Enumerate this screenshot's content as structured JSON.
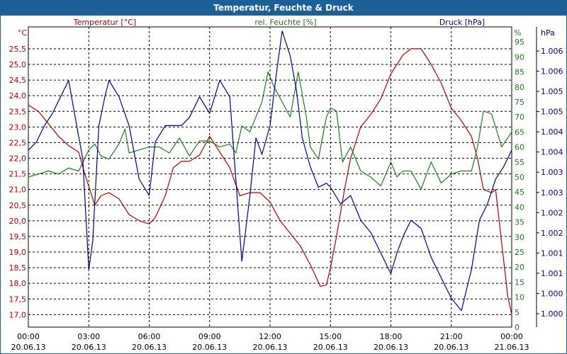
{
  "window": {
    "title": "Temperatur, Feuchte & Druck"
  },
  "colors": {
    "temperature": "#b00000",
    "humidity": "#1f7a1f",
    "pressure": "#00008b",
    "axis_text": "#000000",
    "grid": "#000000",
    "title_bar": "#1d5f97"
  },
  "chart_data": {
    "type": "line",
    "title": "Temperatur, Feuchte & Druck",
    "x_ticks": [
      {
        "time": "00:00",
        "date": "20.06.13"
      },
      {
        "time": "03:00",
        "date": "20.06.13"
      },
      {
        "time": "06:00",
        "date": "20.06.13"
      },
      {
        "time": "09:00",
        "date": "20.06.13"
      },
      {
        "time": "12:00",
        "date": "20.06.13"
      },
      {
        "time": "15:00",
        "date": "20.06.13"
      },
      {
        "time": "18:00",
        "date": "20.06.13"
      },
      {
        "time": "21:00",
        "date": "20.06.13"
      },
      {
        "time": "00:00",
        "date": "21.06.13"
      }
    ],
    "xlim_hours": [
      0,
      24
    ],
    "axes": {
      "left": {
        "unit": "°C",
        "label": "Temperatur [°C]",
        "ylim": [
          16.6,
          26.2
        ],
        "ticks": [
          "17,0",
          "17,5",
          "18,0",
          "18,5",
          "19,0",
          "19,5",
          "20,0",
          "20,5",
          "21,0",
          "21,5",
          "22,0",
          "22,5",
          "23,0",
          "23,5",
          "24,0",
          "24,5",
          "25,0",
          "25,5"
        ]
      },
      "right1": {
        "unit": "%",
        "label": "rel. Feuchte [%]",
        "ylim": [
          0,
          100
        ],
        "ticks": [
          "0",
          "5",
          "10",
          "15",
          "20",
          "25",
          "30",
          "35",
          "40",
          "45",
          "50",
          "55",
          "60",
          "65",
          "70",
          "75",
          "80",
          "85",
          "90",
          "95"
        ]
      },
      "right2": {
        "unit": "hPa",
        "label": "Druck [hPa]",
        "ylim": [
          0.9994,
          1.0067
        ],
        "ticks": [
          "1.000",
          "1.000",
          "1.001",
          "1.001",
          "1.002",
          "1.002",
          "1.003",
          "1.003",
          "1.004",
          "1.004",
          "1.005",
          "1.005",
          "1.006",
          "1.006"
        ]
      }
    },
    "series": [
      {
        "name": "Temperatur [°C]",
        "axis": "left",
        "color": "#b00000",
        "x": [
          0,
          0.5,
          1,
          1.5,
          2,
          2.5,
          2.8,
          3,
          3.3,
          3.6,
          4,
          4.5,
          5,
          5.5,
          6,
          6.3,
          6.8,
          7.2,
          7.6,
          8,
          8.5,
          9,
          9.5,
          10,
          10.5,
          11,
          11.5,
          12,
          12.5,
          13,
          13.5,
          14,
          14.5,
          14.8,
          15,
          15.3,
          15.7,
          16,
          16.5,
          17,
          17.5,
          18,
          18.3,
          18.6,
          19,
          19.5,
          20,
          20.5,
          21,
          21.5,
          22,
          22.3,
          22.6,
          23,
          23.2,
          23.5,
          23.8,
          24
        ],
        "values": [
          23.7,
          23.5,
          23.1,
          22.7,
          22.4,
          22.2,
          21.5,
          21.1,
          20.5,
          20.8,
          20.9,
          20.7,
          20.2,
          20.0,
          19.9,
          20.1,
          20.8,
          21.7,
          21.9,
          21.9,
          22.1,
          22.7,
          22.2,
          21.7,
          20.8,
          20.9,
          20.9,
          20.6,
          20.0,
          19.6,
          19.2,
          18.6,
          17.9,
          17.95,
          18.5,
          19.5,
          21.0,
          22.0,
          23.0,
          23.4,
          23.9,
          24.7,
          25.0,
          25.3,
          25.5,
          25.5,
          25.0,
          24.4,
          23.6,
          23.2,
          22.7,
          22.0,
          21.0,
          20.9,
          21.0,
          19.3,
          17.6,
          17.0
        ]
      },
      {
        "name": "rel. Feuchte [%]",
        "axis": "right1",
        "color": "#1f7a1f",
        "x": [
          0,
          0.5,
          1,
          1.5,
          2,
          2.5,
          3,
          3.3,
          3.6,
          4,
          4.5,
          4.8,
          5,
          5.5,
          6,
          6.5,
          7,
          7.5,
          8,
          8.5,
          9,
          9.5,
          10,
          10.3,
          10.6,
          11,
          11.3,
          11.6,
          11.9,
          12.2,
          12.6,
          13,
          13.4,
          13.8,
          14,
          14.4,
          14.8,
          15,
          15.3,
          15.6,
          16,
          16.5,
          17,
          17.5,
          18,
          18.3,
          18.6,
          19,
          19.5,
          20,
          20.5,
          21,
          21.5,
          22,
          22.3,
          22.6,
          23,
          23.5,
          24
        ],
        "values": [
          50,
          51,
          52,
          51,
          53,
          52,
          59,
          61,
          57,
          56,
          61,
          66,
          58,
          59,
          60,
          60,
          58,
          63,
          57,
          62,
          62,
          60,
          61,
          58,
          67,
          65,
          70,
          75,
          85,
          80,
          75,
          70,
          85,
          70,
          60,
          56,
          70,
          73,
          72,
          55,
          60,
          52,
          50,
          47,
          55,
          50,
          52,
          52,
          46,
          55,
          48,
          51,
          52,
          52,
          60,
          72,
          71,
          60,
          65
        ]
      },
      {
        "name": "Druck [hPa]",
        "axis": "right2",
        "color": "#00008b",
        "x": [
          0,
          0.4,
          0.8,
          1.2,
          1.6,
          2,
          2.4,
          2.7,
          3,
          3.2,
          3.5,
          3.8,
          4,
          4.5,
          5,
          5.5,
          6,
          6.3,
          6.8,
          7.2,
          7.6,
          8,
          8.5,
          9,
          9.5,
          10,
          10.3,
          10.6,
          11,
          11.3,
          11.6,
          12,
          12.3,
          12.6,
          13,
          13.3,
          13.6,
          14,
          14.4,
          14.8,
          15,
          15.5,
          16,
          16.5,
          17,
          17.5,
          18,
          18.3,
          18.6,
          19,
          19.5,
          20,
          20.5,
          21,
          21.5,
          21.8,
          22,
          22.4,
          22.8,
          23.2,
          23.6,
          24
        ],
        "values": [
          1.0037,
          1.0039,
          1.0043,
          1.0046,
          1.005,
          1.0054,
          1.0043,
          1.0035,
          1.0008,
          1.0015,
          1.0043,
          1.005,
          1.0054,
          1.005,
          1.0043,
          1.003,
          1.0026,
          1.0039,
          1.0043,
          1.0043,
          1.0043,
          1.0045,
          1.005,
          1.0046,
          1.0054,
          1.005,
          1.003,
          1.001,
          1.0026,
          1.004,
          1.0036,
          1.0043,
          1.0055,
          1.0066,
          1.006,
          1.0052,
          1.004,
          1.0033,
          1.0028,
          1.0029,
          1.0028,
          1.0024,
          1.0026,
          1.002,
          1.0017,
          1.0012,
          1.0007,
          1.0012,
          1.0016,
          1.002,
          1.0018,
          1.0011,
          1.0006,
          1.0001,
          0.9998,
          1.0004,
          1.0008,
          1.002,
          1.0024,
          1.003,
          1.0033,
          1.0037
        ]
      }
    ]
  }
}
